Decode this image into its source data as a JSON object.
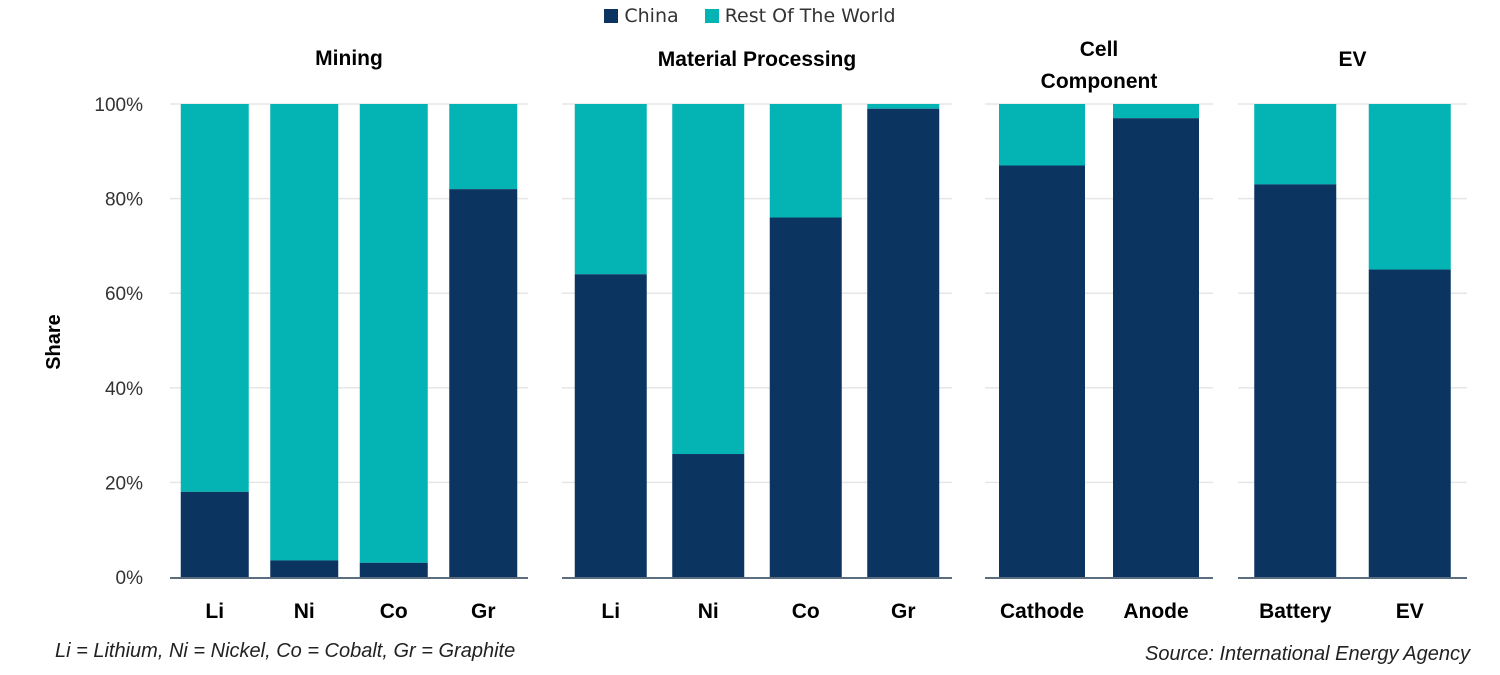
{
  "chart_data": {
    "type": "bar",
    "stacked": true,
    "ylabel": "Share",
    "ylim": [
      0,
      100
    ],
    "yticks": [
      "0%",
      "20%",
      "40%",
      "60%",
      "80%",
      "100%"
    ],
    "grid": true,
    "legend_position": "top-center",
    "colors": {
      "china": "#0b3560",
      "rest": "#04b3b3"
    },
    "legend": [
      {
        "name": "China",
        "color": "#0b3560"
      },
      {
        "name": "Rest Of The World",
        "color": "#04b3b3"
      }
    ],
    "panels": [
      {
        "title": [
          "Mining"
        ],
        "categories": [
          "Li",
          "Ni",
          "Co",
          "Gr"
        ],
        "china": [
          18,
          3.5,
          3,
          82
        ]
      },
      {
        "title": [
          "Material Processing"
        ],
        "categories": [
          "Li",
          "Ni",
          "Co",
          "Gr"
        ],
        "china": [
          64,
          26,
          76,
          99
        ]
      },
      {
        "title": [
          "Cell",
          "Component"
        ],
        "categories": [
          "Cathode",
          "Anode"
        ],
        "china": [
          87,
          97
        ]
      },
      {
        "title": [
          "EV"
        ],
        "categories": [
          "Battery",
          "EV"
        ],
        "china": [
          83,
          65
        ]
      }
    ]
  },
  "footnote": "Li = Lithium, Ni = Nickel, Co = Cobalt, Gr = Graphite",
  "source": "Source: International Energy Agency"
}
